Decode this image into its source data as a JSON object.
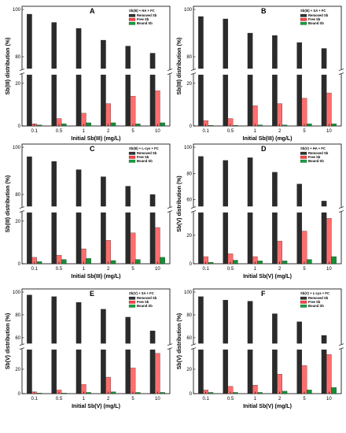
{
  "colors": {
    "removed": "#333333",
    "free": "#ff4040",
    "bound": "#14a03c",
    "hatch_dark": "#111111",
    "hatch_light": "#ffffff"
  },
  "chart_data": [
    {
      "type": "bar",
      "panel": "A",
      "legend_title": "Sb(III) + HA + FC",
      "legend": [
        "Removed Sb",
        "Free Sb",
        "Bound Sb"
      ],
      "categories": [
        "0.1",
        "0.5",
        "1",
        "2",
        "5",
        "10"
      ],
      "xlabel": "Initial Sb(III) (mg/L)",
      "ylabel": "Sb(III) distribution (%)",
      "y_ticks_lower": [
        "0",
        "20"
      ],
      "y_ticks_upper": [
        "80",
        "100"
      ],
      "series": [
        {
          "name": "Removed Sb",
          "values": [
            98,
            94.5,
            92,
            87,
            84.5,
            81.5
          ]
        },
        {
          "name": "Free Sb",
          "values": [
            1,
            3.5,
            6,
            10.5,
            14,
            16.5
          ]
        },
        {
          "name": "Bound Sb",
          "values": [
            0.5,
            1,
            1.5,
            1.5,
            1,
            1.5
          ]
        }
      ]
    },
    {
      "type": "bar",
      "panel": "B",
      "legend_title": "Sb(III) + SA + FC",
      "legend": [
        "Removed Sb",
        "Free Sb",
        "Bound Sb"
      ],
      "categories": [
        "0.1",
        "0.5",
        "1",
        "2",
        "5",
        "10"
      ],
      "xlabel": "Initial Sb(III) (mg/L)",
      "ylabel": "Sb(III) distribution (%)",
      "y_ticks_lower": [
        "0",
        "20"
      ],
      "y_ticks_upper": [
        "80",
        "100"
      ],
      "series": [
        {
          "name": "Removed Sb",
          "values": [
            97,
            96,
            90,
            89,
            86,
            83.5
          ]
        },
        {
          "name": "Free Sb",
          "values": [
            2.5,
            3.5,
            9.5,
            10.5,
            13,
            15.5
          ]
        },
        {
          "name": "Bound Sb",
          "values": [
            0.3,
            0.3,
            0.5,
            0.5,
            1,
            1
          ]
        }
      ]
    },
    {
      "type": "bar",
      "panel": "C",
      "legend_title": "Sb(III) + L-cys + FC",
      "legend": [
        "Removed Sb",
        "Free Sb",
        "Bound Sb"
      ],
      "categories": [
        "0.1",
        "0.5",
        "1",
        "2",
        "5",
        "10"
      ],
      "xlabel": "Initial Sb(III) (mg/L)",
      "ylabel": "Sb(III) distribution (%)",
      "y_ticks_lower": [
        "0",
        "20"
      ],
      "y_ticks_upper": [
        "80",
        "100"
      ],
      "series": [
        {
          "name": "Removed Sb",
          "values": [
            96,
            94,
            90.5,
            87.5,
            83.5,
            80
          ]
        },
        {
          "name": "Free Sb",
          "values": [
            3,
            4,
            7,
            11,
            14.5,
            17
          ]
        },
        {
          "name": "Bound Sb",
          "values": [
            1,
            2,
            2.5,
            1.5,
            2,
            3
          ]
        }
      ]
    },
    {
      "type": "bar",
      "panel": "D",
      "legend_title": "Sb(V) + HA + FC",
      "legend": [
        "Removed Sb",
        "Free Sb",
        "Bound Sb"
      ],
      "categories": [
        "0.1",
        "0.5",
        "1",
        "2",
        "5",
        "10"
      ],
      "xlabel": "Initial Sb(V) (mg/L)",
      "ylabel": "Sb(V) distribution (%)",
      "y_ticks_lower": [
        "0",
        "20"
      ],
      "y_ticks_upper": [
        "60",
        "80",
        "100"
      ],
      "series": [
        {
          "name": "Removed Sb",
          "values": [
            93,
            90,
            92,
            81,
            72,
            59
          ]
        },
        {
          "name": "Free Sb",
          "values": [
            5,
            7,
            5,
            16,
            23,
            32
          ]
        },
        {
          "name": "Bound Sb",
          "values": [
            1,
            2.5,
            2,
            2,
            3,
            5
          ]
        }
      ]
    },
    {
      "type": "bar",
      "panel": "E",
      "legend_title": "Sb(V) + SA + FC",
      "legend": [
        "Removed Sb",
        "Free Sb",
        "Bound Sb"
      ],
      "categories": [
        "0.1",
        "0.5",
        "1",
        "2",
        "5",
        "10"
      ],
      "xlabel": "Initial Sb(V) (mg/L)",
      "ylabel": "Sb(V) distribution (%)",
      "y_ticks_lower": [
        "0",
        "20"
      ],
      "y_ticks_upper": [
        "60",
        "80",
        "100"
      ],
      "series": [
        {
          "name": "Removed Sb",
          "values": [
            97.5,
            96,
            91,
            85,
            78,
            66
          ]
        },
        {
          "name": "Free Sb",
          "values": [
            1.5,
            3,
            7.5,
            13.5,
            21,
            33
          ]
        },
        {
          "name": "Bound Sb",
          "values": [
            0.5,
            0.5,
            1,
            1.5,
            1,
            1
          ]
        }
      ]
    },
    {
      "type": "bar",
      "panel": "F",
      "legend_title": "Sb(V) + L-cys + FC",
      "legend": [
        "Removed Sb",
        "Free Sb",
        "Bound Sb"
      ],
      "categories": [
        "0.1",
        "0.5",
        "1",
        "2",
        "5",
        "10"
      ],
      "xlabel": "Initial Sb(V) (mg/L)",
      "ylabel": "Sb(V) distribution (%)",
      "y_ticks_lower": [
        "0",
        "20"
      ],
      "y_ticks_upper": [
        "60",
        "80",
        "100"
      ],
      "series": [
        {
          "name": "Removed Sb",
          "values": [
            96,
            93,
            92,
            81,
            74,
            62
          ]
        },
        {
          "name": "Free Sb",
          "values": [
            3,
            6,
            7,
            16,
            23,
            32
          ]
        },
        {
          "name": "Bound Sb",
          "values": [
            1,
            1,
            1,
            2,
            3,
            5
          ]
        }
      ]
    }
  ]
}
